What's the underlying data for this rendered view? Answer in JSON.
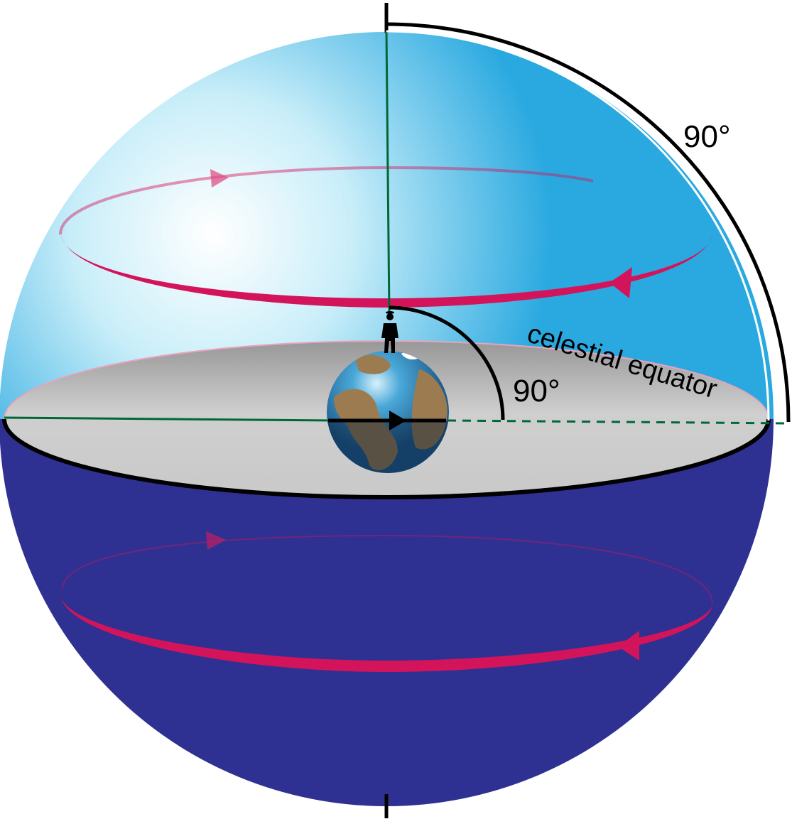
{
  "labels": {
    "angle_outer": "90°",
    "angle_inner": "90°",
    "equator": "celestial equator"
  },
  "colors": {
    "upper_hemisphere_light": "#e6f7fc",
    "upper_hemisphere_dark": "#2aa9e0",
    "lower_hemisphere": "#2e3192",
    "equator_plane": "#cbcbcb",
    "star_path": "#d4145a",
    "axis_line": "#006837",
    "outline": "#000000"
  },
  "icons": {
    "observer": "observer-silhouette-icon",
    "earth": "earth-globe-icon"
  }
}
